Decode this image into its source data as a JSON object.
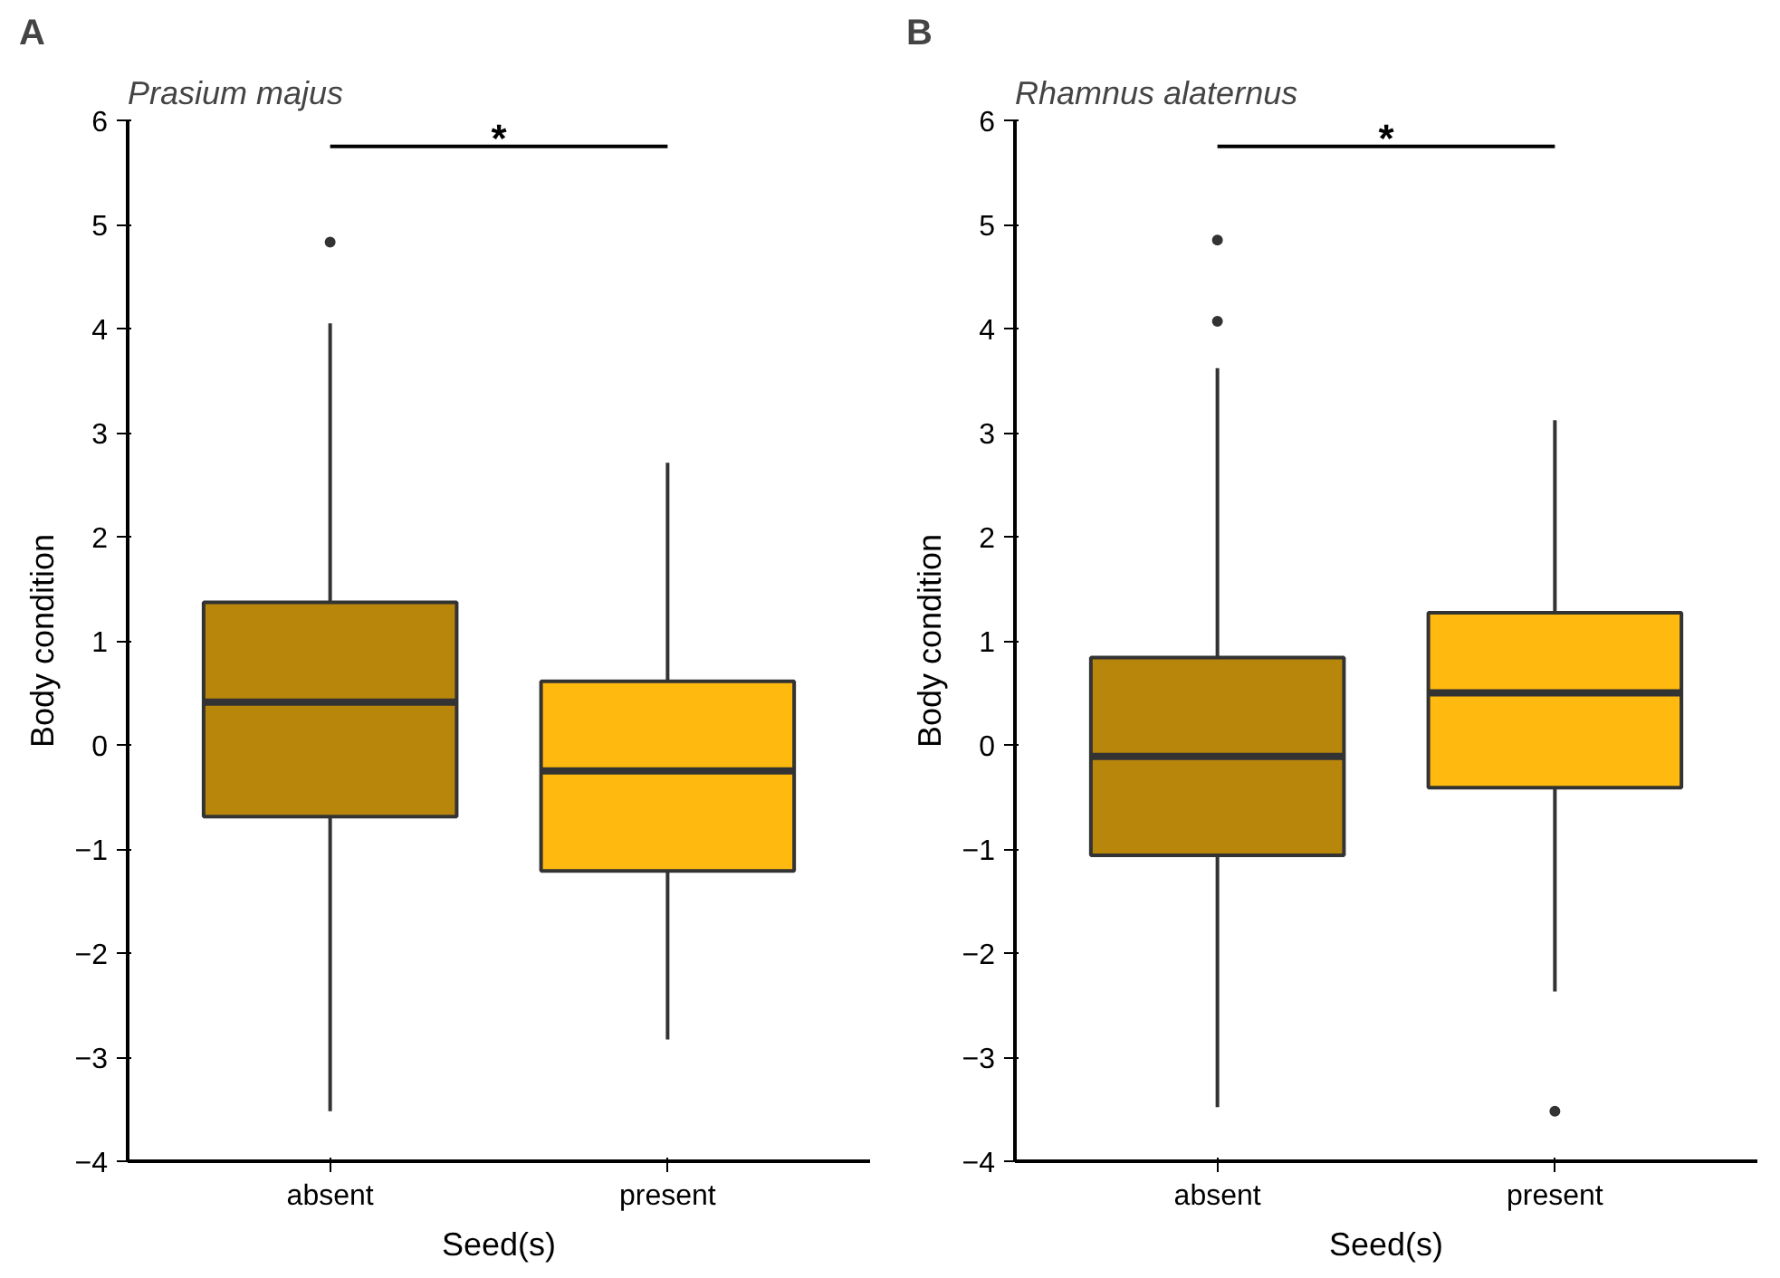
{
  "chart_data": [
    {
      "type": "box",
      "title": "Prasium majus",
      "xlabel": "Seed(s)",
      "ylabel": "Body condition",
      "categories": [
        "absent",
        "present"
      ],
      "colors": [
        "#b8860b",
        "#ffb90f"
      ],
      "boxes": [
        {
          "low": -3.52,
          "q1": -0.69,
          "median": 0.41,
          "q3": 1.37,
          "high": 4.05,
          "outliers": [
            4.83
          ]
        },
        {
          "low": -2.83,
          "q1": -1.21,
          "median": -0.25,
          "q3": 0.61,
          "high": 2.71
        }
      ],
      "ylim": [
        -4,
        6
      ],
      "yticks": [
        -4,
        -3,
        -2,
        -1,
        0,
        1,
        2,
        3,
        4,
        5,
        6
      ],
      "grid": false,
      "annotations": [
        "A",
        "*"
      ]
    },
    {
      "type": "box",
      "title": "Rhamnus alaternus",
      "xlabel": "Seed(s)",
      "ylabel": "Body condition",
      "categories": [
        "absent",
        "present"
      ],
      "colors": [
        "#b8860b",
        "#ffb90f"
      ],
      "boxes": [
        {
          "low": -3.48,
          "q1": -1.06,
          "median": -0.11,
          "q3": 0.84,
          "high": 3.62,
          "outliers": [
            4.85,
            4.07
          ]
        },
        {
          "low": -2.37,
          "q1": -0.41,
          "median": 0.5,
          "q3": 1.27,
          "high": 3.12,
          "outliers": [
            -3.52
          ]
        }
      ],
      "ylim": [
        -4,
        6
      ],
      "yticks": [
        -4,
        -3,
        -2,
        -1,
        0,
        1,
        2,
        3,
        4,
        5,
        6
      ],
      "grid": false,
      "annotations": [
        "B",
        "*"
      ]
    }
  ]
}
